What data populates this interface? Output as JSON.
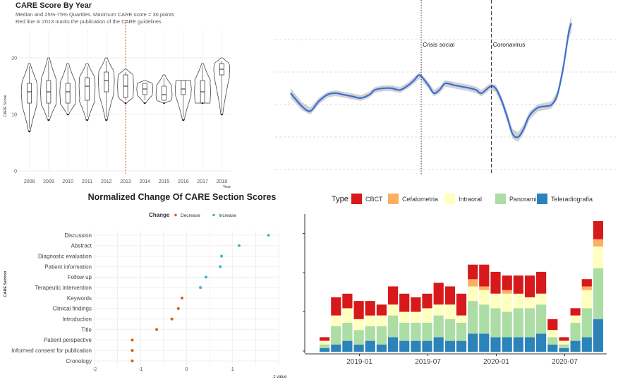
{
  "chart_data": [
    {
      "type": "violin",
      "title": "CARE Score By Year",
      "subtitle_lines": [
        "Median and 25%-75% Quartiles. Maximum CARE score = 30 points",
        "Red line in 2013 marks the publication of the CARE guidelines"
      ],
      "xlabel": "Year",
      "ylabel": "CARE Score",
      "categories": [
        "2008",
        "2009",
        "2010",
        "2011",
        "2012",
        "2013",
        "2014",
        "2015",
        "2016",
        "2017",
        "2018"
      ],
      "medians": [
        14,
        14,
        14,
        15,
        16,
        15,
        14.5,
        13.5,
        14.5,
        14,
        18
      ],
      "q1": [
        12,
        12,
        12,
        12.5,
        14,
        13,
        13.5,
        12.5,
        13.5,
        12,
        17
      ],
      "q3": [
        15.5,
        16,
        15.5,
        16.5,
        17.5,
        17,
        15.5,
        15,
        16,
        16,
        19
      ],
      "mins": [
        7,
        9,
        10,
        9,
        9,
        12,
        12,
        12,
        9,
        12,
        10
      ],
      "maxs": [
        19,
        20,
        19,
        19,
        20,
        18,
        16,
        17,
        16,
        19,
        20
      ],
      "ylim": [
        0,
        25
      ],
      "yticks": [
        0,
        10,
        20
      ],
      "reference_line": {
        "category": "2013",
        "color": "#e0552b"
      }
    },
    {
      "type": "line",
      "series": [
        {
          "name": "",
          "color": "#3a6fd8",
          "band_color": "#c9c9c9"
        }
      ],
      "points": [
        [
          0.0,
          0.47
        ],
        [
          0.04,
          0.39
        ],
        [
          0.07,
          0.36
        ],
        [
          0.1,
          0.42
        ],
        [
          0.13,
          0.46
        ],
        [
          0.16,
          0.47
        ],
        [
          0.19,
          0.46
        ],
        [
          0.22,
          0.45
        ],
        [
          0.25,
          0.44
        ],
        [
          0.28,
          0.46
        ],
        [
          0.3,
          0.49
        ],
        [
          0.33,
          0.5
        ],
        [
          0.36,
          0.5
        ],
        [
          0.39,
          0.49
        ],
        [
          0.42,
          0.52
        ],
        [
          0.44,
          0.55
        ],
        [
          0.46,
          0.58
        ],
        [
          0.49,
          0.52
        ],
        [
          0.51,
          0.47
        ],
        [
          0.53,
          0.49
        ],
        [
          0.55,
          0.53
        ],
        [
          0.58,
          0.52
        ],
        [
          0.61,
          0.51
        ],
        [
          0.64,
          0.5
        ],
        [
          0.66,
          0.49
        ],
        [
          0.68,
          0.47
        ],
        [
          0.71,
          0.51
        ],
        [
          0.73,
          0.5
        ],
        [
          0.75,
          0.43
        ],
        [
          0.77,
          0.33
        ],
        [
          0.79,
          0.22
        ],
        [
          0.81,
          0.2
        ],
        [
          0.83,
          0.25
        ],
        [
          0.85,
          0.33
        ],
        [
          0.88,
          0.38
        ],
        [
          0.91,
          0.39
        ],
        [
          0.93,
          0.4
        ],
        [
          0.95,
          0.46
        ],
        [
          0.97,
          0.62
        ],
        [
          0.99,
          0.84
        ],
        [
          1.0,
          0.9
        ]
      ],
      "band_halfwidth": [
        0.03,
        0.025,
        0.022,
        0.02,
        0.018,
        0.018,
        0.018,
        0.018,
        0.018,
        0.018,
        0.018,
        0.018,
        0.018,
        0.018,
        0.018,
        0.02,
        0.02,
        0.02,
        0.02,
        0.02,
        0.02,
        0.02,
        0.02,
        0.02,
        0.02,
        0.02,
        0.02,
        0.022,
        0.025,
        0.028,
        0.03,
        0.03,
        0.028,
        0.025,
        0.022,
        0.022,
        0.022,
        0.025,
        0.03,
        0.04,
        0.05
      ],
      "vlines": [
        {
          "x": 0.465,
          "label": "Crisis social",
          "style": "dotted"
        },
        {
          "x": 0.715,
          "label": "Coronavirus",
          "style": "dashed"
        }
      ]
    },
    {
      "type": "dot",
      "title": "Normalized Change Of CARE Section Scores",
      "legend_title": "Change",
      "legend": [
        {
          "name": "Decrease",
          "color": "#d95f0e"
        },
        {
          "name": "Increase",
          "color": "#41b6c4"
        }
      ],
      "ylabel": "CARE Section",
      "xlabel": "z value",
      "xlim": [
        -2,
        2
      ],
      "xticks": [
        -2,
        -1,
        0,
        1
      ],
      "categories": [
        "Discussion",
        "Abstract",
        "Diagnostic evaluation",
        "Patient information",
        "Follow up",
        "Terapeutic intervention",
        "Keywords",
        "Clinical findings",
        "Introduction",
        "Title",
        "Patient perspective",
        "Informed consent for publication",
        "Cronology"
      ],
      "values": [
        1.78,
        1.14,
        0.76,
        0.73,
        0.42,
        0.3,
        -0.1,
        -0.18,
        -0.32,
        -0.65,
        -1.18,
        -1.18,
        -1.18
      ]
    },
    {
      "type": "bar",
      "stacked": true,
      "legend_title": "Type",
      "series": [
        {
          "name": "CBCT",
          "color": "#d7191c",
          "values": [
            1,
            5,
            4,
            5,
            4,
            3,
            5,
            5,
            4,
            4,
            6,
            5,
            6,
            4,
            6,
            6,
            4,
            5,
            6,
            6,
            3,
            1,
            2,
            2,
            5
          ]
        },
        {
          "name": "Cefalometria",
          "color": "#fdae61",
          "values": [
            0,
            0,
            0,
            0,
            0,
            0,
            0,
            0,
            0,
            0,
            0,
            0,
            0,
            2,
            1,
            0,
            1,
            0,
            0,
            0,
            0,
            0,
            0,
            1,
            2
          ]
        },
        {
          "name": "Intraoral",
          "color": "#ffffbf",
          "values": [
            1,
            3,
            4,
            3,
            3,
            3,
            3,
            3,
            3,
            4,
            3,
            4,
            2,
            4,
            4,
            4,
            5,
            4,
            3,
            3,
            2,
            1,
            2,
            5,
            6
          ]
        },
        {
          "name": "Panoramica",
          "color": "#abdda4",
          "values": [
            1,
            5,
            5,
            4,
            4,
            5,
            6,
            5,
            5,
            5,
            6,
            6,
            5,
            9,
            8,
            8,
            7,
            8,
            8,
            8,
            2,
            1,
            5,
            8,
            14
          ]
        },
        {
          "name": "Teleradiografia",
          "color": "#2b83ba",
          "values": [
            1,
            2,
            3,
            2,
            3,
            2,
            4,
            3,
            3,
            3,
            4,
            3,
            3,
            5,
            5,
            4,
            4,
            4,
            4,
            5,
            2,
            1,
            3,
            4,
            9
          ]
        }
      ],
      "bar_count": 25,
      "xtick_labels": [
        "2019-01",
        "2019-07",
        "2020-01",
        "2020-07"
      ],
      "xtick_positions": [
        3.5,
        9.5,
        15.5,
        21.5
      ]
    }
  ]
}
